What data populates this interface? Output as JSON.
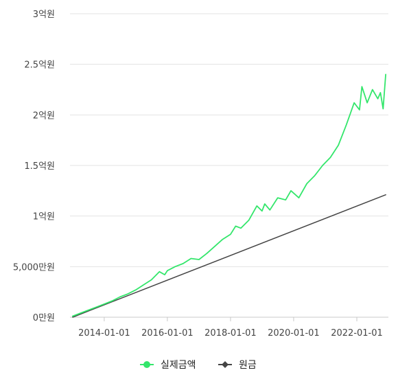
{
  "colors": {
    "actual": "#33e66b",
    "principal": "#444444",
    "grid": "#e3e3e3",
    "axis": "#c8c8c8"
  },
  "chart_data": {
    "type": "line",
    "y_unit": "원",
    "ylim": [
      0,
      300000000
    ],
    "y_ticks": [
      {
        "value": 0,
        "label": "0만원"
      },
      {
        "value": 50000000,
        "label": "5,000만원"
      },
      {
        "value": 100000000,
        "label": "1억원"
      },
      {
        "value": 150000000,
        "label": "1.5억원"
      },
      {
        "value": 200000000,
        "label": "2억원"
      },
      {
        "value": 250000000,
        "label": "2.5억원"
      },
      {
        "value": 300000000,
        "label": "3억원"
      }
    ],
    "xlim": [
      "2012-12-01",
      "2023-01-01"
    ],
    "x_ticks": [
      "2014-01-01",
      "2016-01-01",
      "2018-01-01",
      "2020-01-01",
      "2022-01-01"
    ],
    "grid": "horizontal",
    "legend_position": "bottom-center",
    "series": [
      {
        "name": "실제금액",
        "color": "#33e66b",
        "points": [
          [
            "2013-01-01",
            1000000
          ],
          [
            "2013-04-01",
            4000000
          ],
          [
            "2013-07-01",
            7000000
          ],
          [
            "2013-10-01",
            10000000
          ],
          [
            "2014-01-01",
            13000000
          ],
          [
            "2014-04-01",
            16000000
          ],
          [
            "2014-07-01",
            20000000
          ],
          [
            "2014-10-01",
            23000000
          ],
          [
            "2015-01-01",
            27000000
          ],
          [
            "2015-04-01",
            32000000
          ],
          [
            "2015-07-01",
            37000000
          ],
          [
            "2015-10-01",
            45000000
          ],
          [
            "2015-12-01",
            42000000
          ],
          [
            "2016-01-01",
            46000000
          ],
          [
            "2016-04-01",
            50000000
          ],
          [
            "2016-07-01",
            53000000
          ],
          [
            "2016-10-01",
            58000000
          ],
          [
            "2017-01-01",
            57000000
          ],
          [
            "2017-04-01",
            63000000
          ],
          [
            "2017-07-01",
            70000000
          ],
          [
            "2017-10-01",
            77000000
          ],
          [
            "2018-01-01",
            82000000
          ],
          [
            "2018-03-01",
            90000000
          ],
          [
            "2018-05-01",
            88000000
          ],
          [
            "2018-08-01",
            96000000
          ],
          [
            "2018-11-01",
            110000000
          ],
          [
            "2019-01-01",
            105000000
          ],
          [
            "2019-02-01",
            112000000
          ],
          [
            "2019-04-01",
            106000000
          ],
          [
            "2019-07-01",
            118000000
          ],
          [
            "2019-10-01",
            116000000
          ],
          [
            "2019-12-01",
            125000000
          ],
          [
            "2020-03-01",
            118000000
          ],
          [
            "2020-06-01",
            132000000
          ],
          [
            "2020-09-01",
            140000000
          ],
          [
            "2020-12-01",
            150000000
          ],
          [
            "2021-03-01",
            158000000
          ],
          [
            "2021-06-01",
            170000000
          ],
          [
            "2021-09-01",
            190000000
          ],
          [
            "2021-12-01",
            212000000
          ],
          [
            "2022-02-01",
            205000000
          ],
          [
            "2022-03-01",
            228000000
          ],
          [
            "2022-05-01",
            212000000
          ],
          [
            "2022-07-01",
            225000000
          ],
          [
            "2022-09-01",
            216000000
          ],
          [
            "2022-10-01",
            222000000
          ],
          [
            "2022-11-01",
            206000000
          ],
          [
            "2022-12-01",
            240000000
          ]
        ]
      },
      {
        "name": "원금",
        "color": "#444444",
        "points": [
          [
            "2013-01-01",
            0
          ],
          [
            "2022-12-01",
            121000000
          ]
        ]
      }
    ]
  }
}
